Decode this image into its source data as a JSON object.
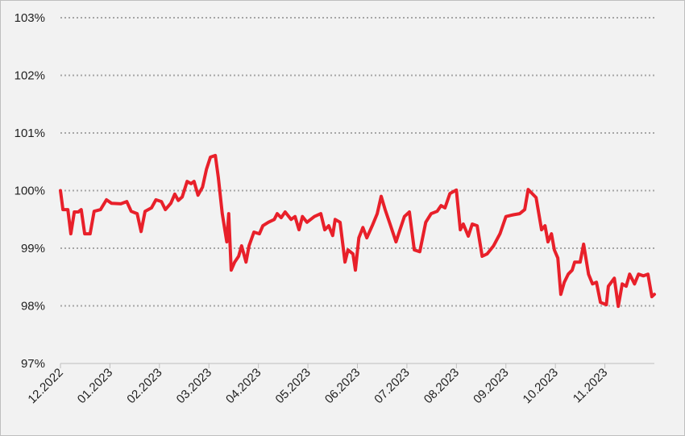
{
  "chart_data": {
    "type": "line",
    "x": [
      0,
      0.05,
      0.15,
      0.21,
      0.28,
      0.36,
      0.42,
      0.49,
      0.6,
      0.68,
      0.81,
      0.93,
      1.03,
      1.22,
      1.34,
      1.43,
      1.55,
      1.63,
      1.71,
      1.84,
      1.93,
      2.04,
      2.12,
      2.23,
      2.31,
      2.38,
      2.46,
      2.56,
      2.64,
      2.7,
      2.78,
      2.87,
      2.95,
      3.03,
      3.13,
      3.19,
      3.27,
      3.36,
      3.4,
      3.45,
      3.52,
      3.6,
      3.66,
      3.75,
      3.81,
      3.91,
      4.02,
      4.09,
      4.2,
      4.32,
      4.38,
      4.46,
      4.54,
      4.66,
      4.74,
      4.82,
      4.89,
      4.98,
      5.13,
      5.26,
      5.34,
      5.42,
      5.5,
      5.55,
      5.65,
      5.75,
      5.81,
      5.91,
      5.96,
      6.03,
      6.11,
      6.19,
      6.3,
      6.4,
      6.48,
      6.56,
      6.66,
      6.78,
      6.86,
      6.95,
      7.05,
      7.15,
      7.26,
      7.38,
      7.49,
      7.61,
      7.69,
      7.77,
      7.87,
      8.0,
      8.08,
      8.14,
      8.24,
      8.32,
      8.42,
      8.52,
      8.62,
      8.75,
      8.88,
      9.0,
      9.15,
      9.28,
      9.38,
      9.45,
      9.53,
      9.61,
      9.72,
      9.79,
      9.85,
      9.92,
      9.98,
      10.05,
      10.11,
      10.18,
      10.26,
      10.34,
      10.39,
      10.5,
      10.57,
      10.67,
      10.75,
      10.83,
      10.91,
      11.03,
      11.07,
      11.19,
      11.27,
      11.35,
      11.43,
      11.5,
      11.6,
      11.68,
      11.78,
      11.87,
      11.95,
      12.0
    ],
    "values": [
      100.0,
      99.67,
      99.67,
      99.25,
      99.63,
      99.63,
      99.67,
      99.25,
      99.25,
      99.64,
      99.67,
      99.84,
      99.78,
      99.77,
      99.81,
      99.64,
      99.6,
      99.29,
      99.64,
      99.7,
      99.84,
      99.81,
      99.67,
      99.78,
      99.94,
      99.83,
      99.89,
      100.16,
      100.12,
      100.16,
      99.92,
      100.06,
      100.37,
      100.58,
      100.61,
      100.23,
      99.6,
      99.11,
      99.6,
      98.62,
      98.76,
      98.86,
      99.04,
      98.76,
      99.04,
      99.28,
      99.25,
      99.39,
      99.45,
      99.5,
      99.6,
      99.53,
      99.63,
      99.5,
      99.55,
      99.32,
      99.55,
      99.45,
      99.55,
      99.6,
      99.32,
      99.39,
      99.22,
      99.5,
      99.45,
      98.76,
      98.97,
      98.9,
      98.62,
      99.18,
      99.36,
      99.18,
      99.39,
      99.6,
      99.9,
      99.67,
      99.42,
      99.11,
      99.32,
      99.55,
      99.63,
      98.97,
      98.94,
      99.45,
      99.6,
      99.64,
      99.74,
      99.7,
      99.95,
      100.01,
      99.32,
      99.42,
      99.21,
      99.42,
      99.39,
      98.86,
      98.9,
      99.04,
      99.25,
      99.55,
      99.58,
      99.6,
      99.67,
      100.02,
      99.95,
      99.88,
      99.32,
      99.39,
      99.11,
      99.25,
      98.97,
      98.83,
      98.2,
      98.41,
      98.55,
      98.62,
      98.76,
      98.76,
      99.07,
      98.55,
      98.38,
      98.41,
      98.06,
      98.02,
      98.34,
      98.48,
      97.99,
      98.38,
      98.34,
      98.55,
      98.38,
      98.55,
      98.52,
      98.55,
      98.16,
      98.2
    ],
    "color": "#e8202a",
    "xlim": [
      0,
      12
    ],
    "xticks": [
      {
        "value": 0,
        "label": "12.2022"
      },
      {
        "value": 1,
        "label": "01.2023"
      },
      {
        "value": 2,
        "label": "02.2023"
      },
      {
        "value": 3,
        "label": "03.2023"
      },
      {
        "value": 4,
        "label": "04.2023"
      },
      {
        "value": 5,
        "label": "05.2023"
      },
      {
        "value": 6,
        "label": "06.2023"
      },
      {
        "value": 7,
        "label": "07.2023"
      },
      {
        "value": 8,
        "label": "08.2023"
      },
      {
        "value": 9,
        "label": "09.2023"
      },
      {
        "value": 10,
        "label": "10.2023"
      },
      {
        "value": 11,
        "label": "11.2023"
      }
    ],
    "ylim": [
      97,
      103
    ],
    "yticks": [
      {
        "value": 97,
        "label": "97%"
      },
      {
        "value": 98,
        "label": "98%"
      },
      {
        "value": 99,
        "label": "99%"
      },
      {
        "value": 100,
        "label": "100%"
      },
      {
        "value": 101,
        "label": "101%"
      },
      {
        "value": 102,
        "label": "102%"
      },
      {
        "value": 103,
        "label": "103%"
      }
    ],
    "grid": true
  }
}
